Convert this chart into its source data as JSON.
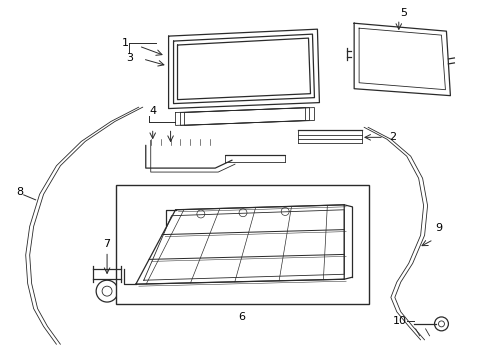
{
  "bg_color": "#ffffff",
  "line_color": "#2a2a2a",
  "label_color": "#000000",
  "lw_main": 0.9,
  "lw_thin": 0.6,
  "lw_label": 0.7
}
